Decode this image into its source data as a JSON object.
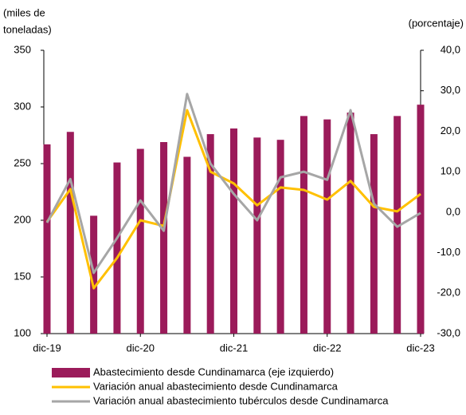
{
  "chart_data": {
    "type": "bar-line",
    "ylabel": [
      "(miles de",
      "toneladas)"
    ],
    "y2label": "(porcentaje)",
    "categories": [
      "dic-19",
      null,
      null,
      null,
      "dic-20",
      null,
      null,
      null,
      "dic-21",
      null,
      null,
      null,
      "dic-22",
      null,
      null,
      null,
      "dic-23"
    ],
    "ylim": [
      100,
      350
    ],
    "yticks": [
      100,
      150,
      200,
      250,
      300,
      350
    ],
    "y2lim": [
      -30,
      40
    ],
    "y2ticks": [
      {
        "value": -30,
        "label": "-30,0"
      },
      {
        "value": -20,
        "label": "-20,0"
      },
      {
        "value": -10,
        "label": "-10,0"
      },
      {
        "value": 0,
        "label": "0,0"
      },
      {
        "value": 10,
        "label": "10,0"
      },
      {
        "value": 20,
        "label": "20,0"
      },
      {
        "value": 30,
        "label": "30,0"
      },
      {
        "value": 40,
        "label": "40,0"
      }
    ],
    "series": [
      {
        "name": "Abastecimiento desde Cundinamarca (eje izquierdo)",
        "type": "bar",
        "color": "#9b1b5a",
        "values": [
          267,
          278,
          204,
          251,
          263,
          269,
          256,
          276,
          281,
          273,
          271,
          292,
          289,
          295,
          276,
          292,
          302
        ]
      },
      {
        "name": "Variación anual abastecimiento desde Cundinamarca",
        "type": "line",
        "axis": "y2",
        "color": "#ffc000",
        "values": [
          -2.4,
          5.7,
          -18.8,
          -11.3,
          -2.0,
          -3.4,
          25.2,
          10.0,
          7.1,
          1.7,
          6.1,
          5.5,
          3.1,
          7.7,
          1.3,
          0.2,
          4.5
        ]
      },
      {
        "name": "Variación anual abastecimiento tubérculos desde Cundinamarca",
        "type": "line",
        "axis": "y2",
        "color": "#a6a6a6",
        "values": [
          -2.6,
          8.2,
          -15.0,
          -6.4,
          2.9,
          -4.6,
          29.2,
          12.0,
          4.5,
          -2.0,
          8.6,
          10.0,
          8.0,
          25.2,
          2.1,
          -3.6,
          -0.2
        ]
      }
    ]
  }
}
